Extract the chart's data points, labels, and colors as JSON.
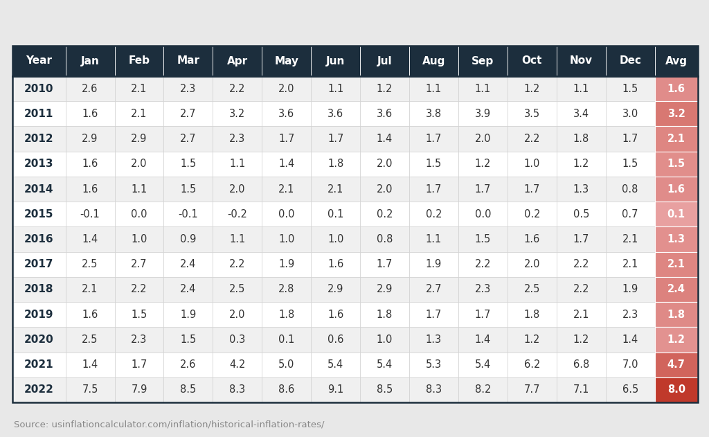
{
  "headers": [
    "Year",
    "Jan",
    "Feb",
    "Mar",
    "Apr",
    "May",
    "Jun",
    "Jul",
    "Aug",
    "Sep",
    "Oct",
    "Nov",
    "Dec",
    "Avg"
  ],
  "rows": [
    [
      2010,
      2.6,
      2.1,
      2.3,
      2.2,
      2.0,
      1.1,
      1.2,
      1.1,
      1.1,
      1.2,
      1.1,
      1.5,
      1.6
    ],
    [
      2011,
      1.6,
      2.1,
      2.7,
      3.2,
      3.6,
      3.6,
      3.6,
      3.8,
      3.9,
      3.5,
      3.4,
      3.0,
      3.2
    ],
    [
      2012,
      2.9,
      2.9,
      2.7,
      2.3,
      1.7,
      1.7,
      1.4,
      1.7,
      2.0,
      2.2,
      1.8,
      1.7,
      2.1
    ],
    [
      2013,
      1.6,
      2.0,
      1.5,
      1.1,
      1.4,
      1.8,
      2.0,
      1.5,
      1.2,
      1.0,
      1.2,
      1.5,
      1.5
    ],
    [
      2014,
      1.6,
      1.1,
      1.5,
      2.0,
      2.1,
      2.1,
      2.0,
      1.7,
      1.7,
      1.7,
      1.3,
      0.8,
      1.6
    ],
    [
      2015,
      -0.1,
      0.0,
      -0.1,
      -0.2,
      0.0,
      0.1,
      0.2,
      0.2,
      0.0,
      0.2,
      0.5,
      0.7,
      0.1
    ],
    [
      2016,
      1.4,
      1.0,
      0.9,
      1.1,
      1.0,
      1.0,
      0.8,
      1.1,
      1.5,
      1.6,
      1.7,
      2.1,
      1.3
    ],
    [
      2017,
      2.5,
      2.7,
      2.4,
      2.2,
      1.9,
      1.6,
      1.7,
      1.9,
      2.2,
      2.0,
      2.2,
      2.1,
      2.1
    ],
    [
      2018,
      2.1,
      2.2,
      2.4,
      2.5,
      2.8,
      2.9,
      2.9,
      2.7,
      2.3,
      2.5,
      2.2,
      1.9,
      2.4
    ],
    [
      2019,
      1.6,
      1.5,
      1.9,
      2.0,
      1.8,
      1.6,
      1.8,
      1.7,
      1.7,
      1.8,
      2.1,
      2.3,
      1.8
    ],
    [
      2020,
      2.5,
      2.3,
      1.5,
      0.3,
      0.1,
      0.6,
      1.0,
      1.3,
      1.4,
      1.2,
      1.2,
      1.4,
      1.2
    ],
    [
      2021,
      1.4,
      1.7,
      2.6,
      4.2,
      5.0,
      5.4,
      5.4,
      5.3,
      5.4,
      6.2,
      6.8,
      7.0,
      4.7
    ],
    [
      2022,
      7.5,
      7.9,
      8.5,
      8.3,
      8.6,
      9.1,
      8.5,
      8.3,
      8.2,
      7.7,
      7.1,
      6.5,
      8.0
    ]
  ],
  "header_bg": "#1c2e3d",
  "header_text": "#ffffff",
  "row_bg_even": "#f0f0f0",
  "row_bg_odd": "#ffffff",
  "year_text_color": "#1c2e3d",
  "data_text_color": "#333333",
  "avg_color_min": [
    232,
    160,
    160
  ],
  "avg_color_max": [
    192,
    57,
    43
  ],
  "avg_val_min": 0.1,
  "avg_val_max": 8.0,
  "avg_text_color": "#ffffff",
  "grid_color": "#cccccc",
  "source_text": "Source: usinflationcalculator.com/inflation/historical-inflation-rates/",
  "source_color": "#888888",
  "source_fontsize": 9.5,
  "header_fontsize": 11,
  "data_fontsize": 10.5,
  "year_fontsize": 11,
  "border_color": "#1c2e3d",
  "bg_color": "#e8e8e8"
}
